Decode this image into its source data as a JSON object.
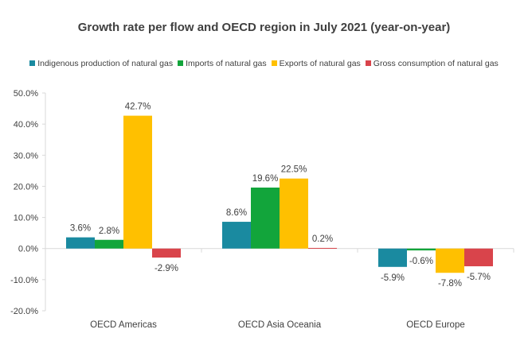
{
  "chart_data": {
    "type": "bar",
    "title": "Growth rate per flow and OECD region in July 2021 (year-on-year)",
    "categories": [
      "OECD Americas",
      "OECD Asia Oceania",
      "OECD Europe"
    ],
    "series": [
      {
        "name": "Indigenous production of natural gas",
        "color": "#1a8aa0",
        "values": [
          3.6,
          8.6,
          -5.9
        ],
        "labels": [
          "3.6%",
          "8.6%",
          "-5.9%"
        ]
      },
      {
        "name": "Imports of natural gas",
        "color": "#12a53b",
        "values": [
          2.8,
          19.6,
          -0.6
        ],
        "labels": [
          "2.8%",
          "19.6%",
          "-0.6%"
        ]
      },
      {
        "name": "Exports of natural gas",
        "color": "#ffc000",
        "values": [
          42.7,
          22.5,
          -7.8
        ],
        "labels": [
          "42.7%",
          "22.5%",
          "-7.8%"
        ]
      },
      {
        "name": "Gross consumption of natural gas",
        "color": "#d9444b",
        "values": [
          -2.9,
          0.2,
          -5.7
        ],
        "labels": [
          "-2.9%",
          "0.2%",
          "-5.7%"
        ]
      }
    ],
    "ylim": [
      -20,
      50
    ],
    "yticks": [
      "-20.0%",
      "-10.0%",
      "0.0%",
      "10.0%",
      "20.0%",
      "30.0%",
      "40.0%",
      "50.0%"
    ],
    "ytick_values": [
      -20,
      -10,
      0,
      10,
      20,
      30,
      40,
      50
    ],
    "legend_position": "top",
    "grid": false
  }
}
